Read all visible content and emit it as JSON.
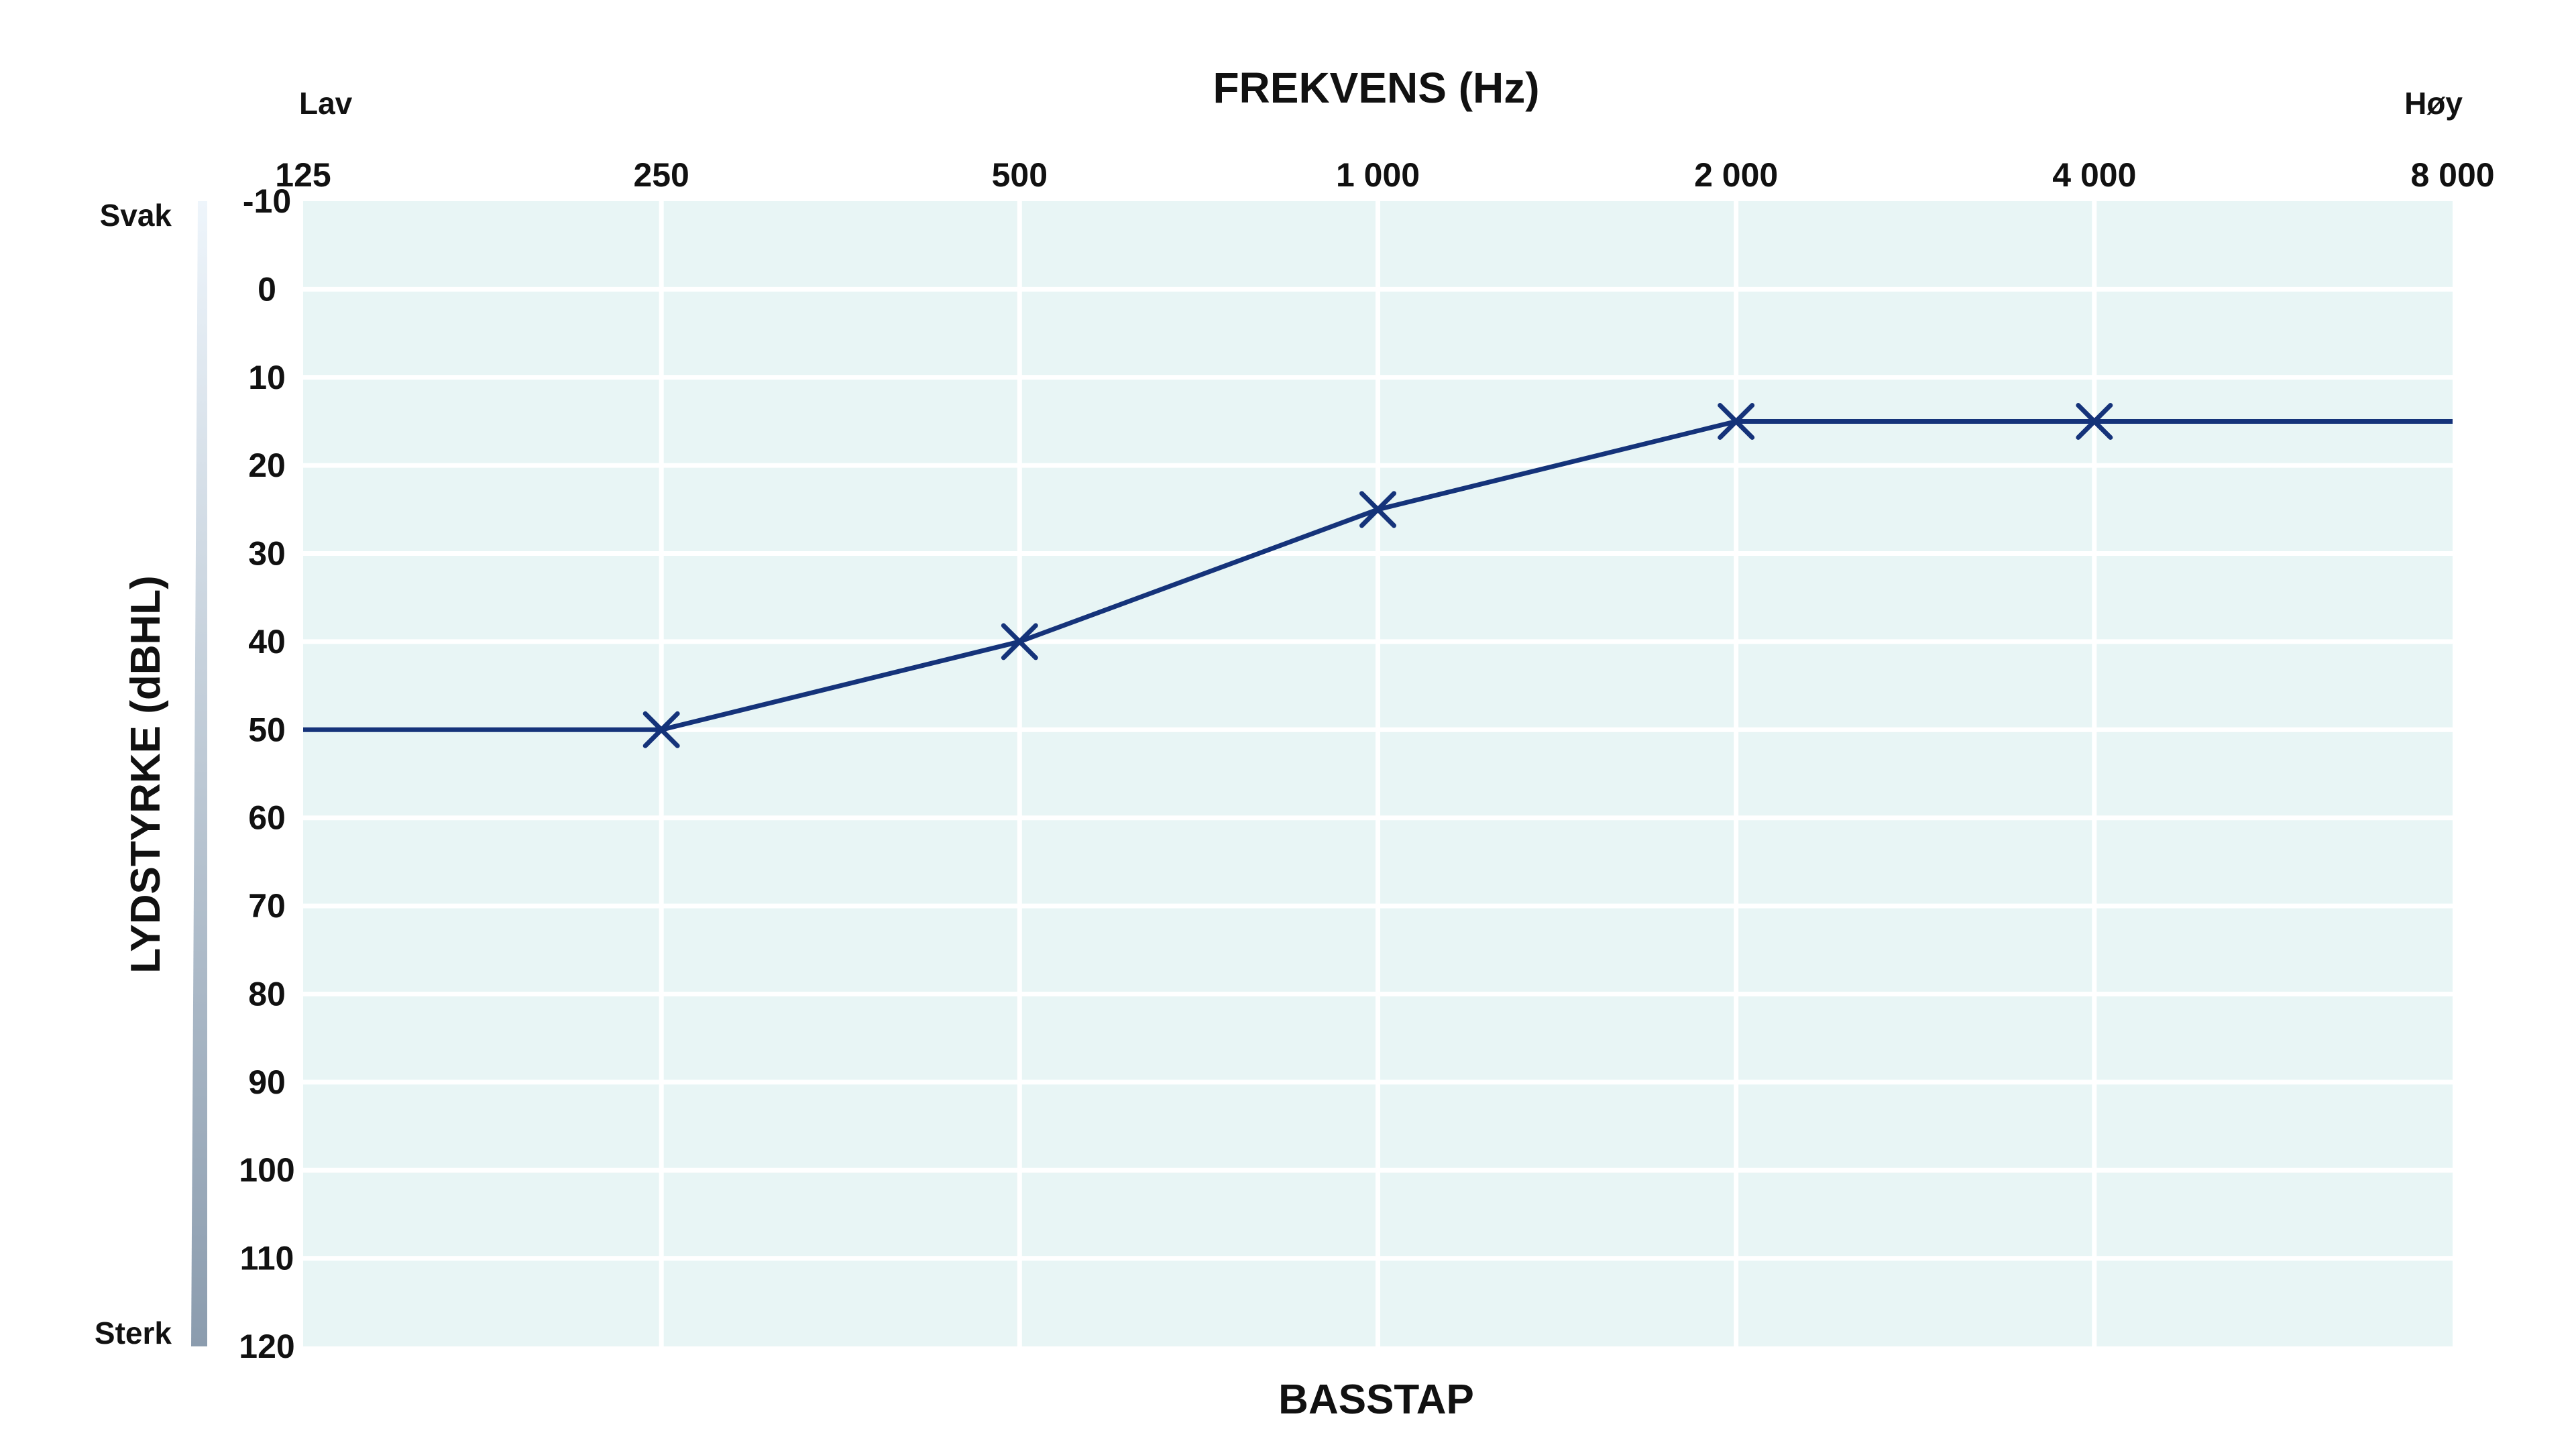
{
  "colors": {
    "plot_background": "#e8f5f5",
    "grid": "#ffffff",
    "line": "#15337a",
    "text": "#111111",
    "scale_bar_top": "#eef5fb",
    "scale_bar_bottom": "#8b9cae"
  },
  "chart_data": {
    "type": "line",
    "title": "FREKVENS (Hz)",
    "subtitle": "BASSTAP",
    "xlabel": "FREKVENS (Hz)",
    "ylabel": "LYDSTYRKE (dBHL)",
    "x_scale": "log2",
    "x_tick_values": [
      125,
      250,
      500,
      1000,
      2000,
      4000,
      8000
    ],
    "x_tick_labels": [
      "125",
      "250",
      "500",
      "1 000",
      "2 000",
      "4 000",
      "8 000"
    ],
    "x_end_labels": {
      "low": "Lav",
      "high": "Høy"
    },
    "y_inverted": true,
    "ylim": [
      -10,
      120
    ],
    "y_tick_values": [
      -10,
      0,
      10,
      20,
      30,
      40,
      50,
      60,
      70,
      80,
      90,
      100,
      110,
      120
    ],
    "y_tick_labels": [
      "-10",
      "0",
      "10",
      "20",
      "30",
      "40",
      "50",
      "60",
      "70",
      "80",
      "90",
      "100",
      "110",
      "120"
    ],
    "y_end_labels": {
      "top": "Svak",
      "bottom": "Sterk"
    },
    "grid": true,
    "series": [
      {
        "line_x": [
          125,
          250,
          500,
          1000,
          2000,
          4000,
          8000
        ],
        "line_y": [
          50,
          50,
          40,
          25,
          15,
          15,
          15
        ],
        "markers_x": [
          250,
          500,
          1000,
          2000,
          4000
        ],
        "markers_y": [
          50,
          40,
          25,
          15,
          15
        ],
        "marker": "x"
      }
    ]
  }
}
